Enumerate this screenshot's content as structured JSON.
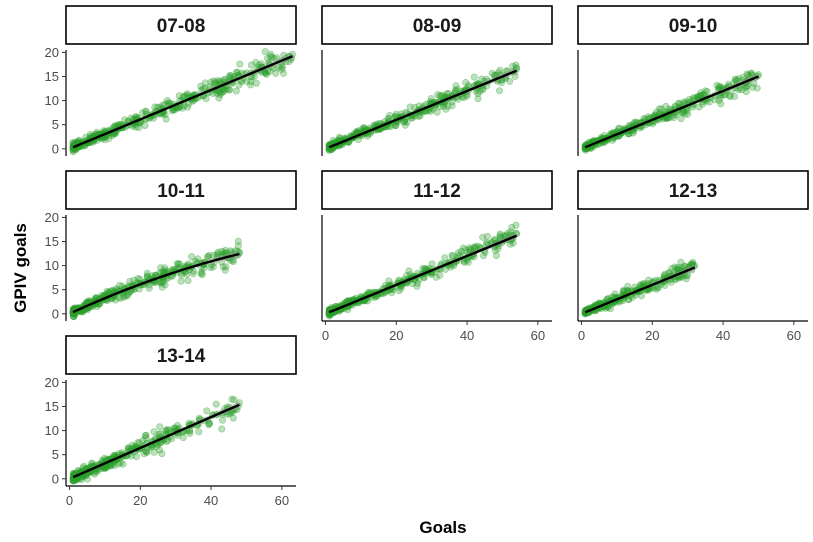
{
  "chart_data": {
    "type": "scatter",
    "xlabel": "Goals",
    "ylabel": "GPIV goals",
    "xlim": [
      -1,
      64
    ],
    "ylim": [
      -1.5,
      20.5
    ],
    "x_ticks": [
      0,
      20,
      40,
      60
    ],
    "y_ticks": [
      0,
      5,
      10,
      15,
      20
    ],
    "point_color": "#2ca02c",
    "fit_color": "#000000",
    "panels": [
      {
        "label": "07-08",
        "x_max": 63,
        "slope": 0.305,
        "curve": 0.0,
        "spread": 0.9
      },
      {
        "label": "08-09",
        "x_max": 54,
        "slope": 0.3,
        "curve": 0.0,
        "spread": 0.8
      },
      {
        "label": "09-10",
        "x_max": 50,
        "slope": 0.3,
        "curve": 0.0,
        "spread": 0.8
      },
      {
        "label": "10-11",
        "x_max": 48,
        "slope": 0.34,
        "curve": -0.0017,
        "spread": 0.9
      },
      {
        "label": "11-12",
        "x_max": 54,
        "slope": 0.3,
        "curve": 0.0,
        "spread": 0.8
      },
      {
        "label": "12-13",
        "x_max": 32,
        "slope": 0.3,
        "curve": 0.0,
        "spread": 0.7
      },
      {
        "label": "13-14",
        "x_max": 48,
        "slope": 0.32,
        "curve": 0.0,
        "spread": 1.0
      }
    ]
  }
}
